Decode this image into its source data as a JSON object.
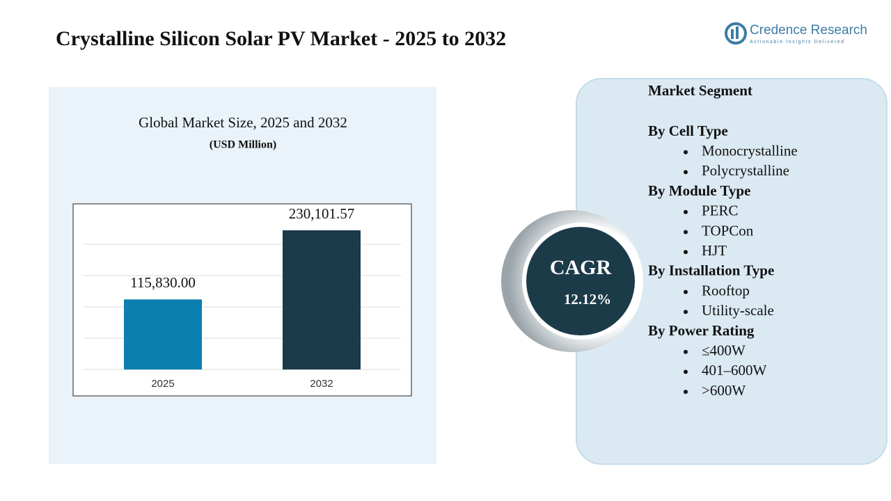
{
  "header": {
    "title": "Crystalline Silicon Solar PV Market - 2025 to 2032",
    "logo": {
      "name": "Credence Research",
      "tagline": "Actionable Insights Delivered"
    }
  },
  "chart_data": {
    "type": "bar",
    "title": "Global Market Size, 2025 and 2032",
    "subtitle": "(USD Million)",
    "categories": [
      "2025",
      "2032"
    ],
    "values": [
      115830,
      230101.57
    ],
    "value_labels": [
      "115,830.00",
      "230,101.57"
    ],
    "colors": [
      "#0b7fb0",
      "#1b3a4a"
    ],
    "ylim": [
      0,
      260000
    ]
  },
  "cagr": {
    "label": "CAGR",
    "value": "12.12%"
  },
  "segments": {
    "title": "Market Segment",
    "groups": [
      {
        "name": "By Cell Type",
        "items": [
          "Monocrystalline",
          "Polycrystalline"
        ]
      },
      {
        "name": "By Module Type",
        "items": [
          "PERC",
          "TOPCon",
          "HJT"
        ]
      },
      {
        "name": "By Installation Type",
        "items": [
          "Rooftop",
          "Utility-scale"
        ]
      },
      {
        "name": "By Power Rating",
        "items": [
          "≤400W",
          "401–600W",
          ">600W"
        ]
      }
    ]
  }
}
